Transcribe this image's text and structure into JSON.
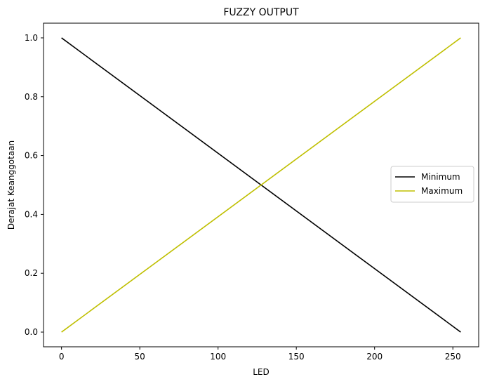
{
  "chart_data": {
    "type": "line",
    "title": "FUZZY OUTPUT",
    "xlabel": "LED",
    "ylabel": "Derajat Keanggotaan",
    "xlim": [
      -11.5,
      266.5
    ],
    "ylim": [
      -0.05,
      1.05
    ],
    "xticks": [
      0,
      50,
      100,
      150,
      200,
      250
    ],
    "xtick_labels": [
      "0",
      "50",
      "100",
      "150",
      "200",
      "250"
    ],
    "yticks": [
      0.0,
      0.2,
      0.4,
      0.6,
      0.8,
      1.0
    ],
    "ytick_labels": [
      "0.0",
      "0.2",
      "0.4",
      "0.6",
      "0.8",
      "1.0"
    ],
    "grid": false,
    "legend_position": "center-right",
    "series": [
      {
        "name": "Minimum",
        "color": "#000000",
        "x": [
          0,
          255
        ],
        "y": [
          1.0,
          0.0
        ]
      },
      {
        "name": "Maximum",
        "color": "#bfbf00",
        "x": [
          0,
          255
        ],
        "y": [
          0.0,
          1.0
        ]
      }
    ]
  }
}
